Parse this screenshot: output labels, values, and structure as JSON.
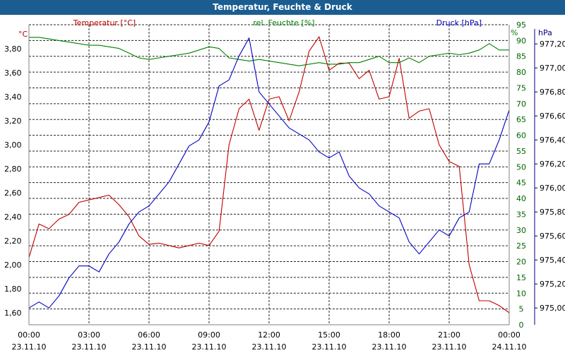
{
  "window": {
    "title": "Temperatur, Feuchte & Druck"
  },
  "chart_data": {
    "type": "line",
    "title": "Temperatur, Feuchte & Druck",
    "x": [
      "00:00",
      "00:30",
      "01:00",
      "01:30",
      "02:00",
      "02:30",
      "03:00",
      "03:30",
      "04:00",
      "04:30",
      "05:00",
      "05:30",
      "06:00",
      "06:30",
      "07:00",
      "07:30",
      "08:00",
      "08:30",
      "09:00",
      "09:30",
      "10:00",
      "10:30",
      "11:00",
      "11:30",
      "12:00",
      "12:30",
      "13:00",
      "13:30",
      "14:00",
      "14:30",
      "15:00",
      "15:30",
      "16:00",
      "16:30",
      "17:00",
      "17:30",
      "18:00",
      "18:30",
      "19:00",
      "19:30",
      "20:00",
      "20:30",
      "21:00",
      "21:30",
      "22:00",
      "22:30",
      "23:00",
      "23:30",
      "24:00"
    ],
    "x_tick_labels": [
      {
        "time": "00:00",
        "date": "23.11.10"
      },
      {
        "time": "03:00",
        "date": "23.11.10"
      },
      {
        "time": "06:00",
        "date": "23.11.10"
      },
      {
        "time": "09:00",
        "date": "23.11.10"
      },
      {
        "time": "12:00",
        "date": "23.11.10"
      },
      {
        "time": "15:00",
        "date": "23.11.10"
      },
      {
        "time": "18:00",
        "date": "23.11.10"
      },
      {
        "time": "21:00",
        "date": "23.11.10"
      },
      {
        "time": "00:00",
        "date": "24.11.10"
      }
    ],
    "axes": [
      {
        "side": "left",
        "unit": "°C",
        "ylim": [
          1.5,
          4.0
        ],
        "ticks": [
          "1,60",
          "1,80",
          "2,00",
          "2,20",
          "2,40",
          "2,60",
          "2,80",
          "3,00",
          "3,20",
          "3,40",
          "3,60",
          "3,80"
        ],
        "color": "#b00000"
      },
      {
        "side": "right",
        "unit": "%",
        "ylim": [
          0,
          95
        ],
        "ticks": [
          "0",
          "5",
          "10",
          "15",
          "20",
          "25",
          "30",
          "35",
          "40",
          "45",
          "50",
          "55",
          "60",
          "65",
          "70",
          "75",
          "80",
          "85",
          "90",
          "95"
        ],
        "color": "#008000"
      },
      {
        "side": "right",
        "unit": "hPa",
        "ylim": [
          974.86,
          977.36
        ],
        "ticks": [
          "975,00",
          "975,20",
          "975,40",
          "975,60",
          "975,80",
          "976,00",
          "976,20",
          "976,40",
          "976,60",
          "976,80",
          "977,00",
          "977,20"
        ],
        "color": "#000080"
      }
    ],
    "series": [
      {
        "name": "Temperatur [°C]",
        "axis": 0,
        "color": "#c00000",
        "values": [
          2.06,
          2.34,
          2.3,
          2.38,
          2.42,
          2.52,
          2.54,
          2.56,
          2.58,
          2.5,
          2.4,
          2.24,
          2.17,
          2.18,
          2.16,
          2.14,
          2.16,
          2.18,
          2.16,
          2.28,
          3.0,
          3.3,
          3.38,
          3.12,
          3.38,
          3.4,
          3.2,
          3.44,
          3.78,
          3.9,
          3.62,
          3.68,
          3.68,
          3.55,
          3.62,
          3.38,
          3.4,
          3.72,
          3.22,
          3.28,
          3.3,
          3.0,
          2.86,
          2.82,
          2.0,
          1.7,
          1.7,
          1.66,
          1.6
        ]
      },
      {
        "name": "rel. Feuchte [%]",
        "axis": 1,
        "color": "#008000",
        "values": [
          91,
          91,
          90.5,
          90,
          89.5,
          89,
          88.5,
          88.5,
          88,
          87.5,
          86,
          84.5,
          84,
          84.5,
          85,
          85.5,
          86,
          87,
          88,
          87.5,
          84.5,
          84,
          83.5,
          84,
          83.5,
          83,
          82.5,
          82,
          82.5,
          83,
          82.5,
          82.5,
          83,
          83,
          84,
          85,
          83,
          83,
          84.5,
          83,
          85,
          85.5,
          86,
          85.5,
          86,
          87,
          89,
          87,
          87
        ]
      },
      {
        "name": "Druck [hPa]",
        "axis": 2,
        "color": "#0000c0",
        "values": [
          975.0,
          975.05,
          975.0,
          975.1,
          975.25,
          975.35,
          975.35,
          975.3,
          975.45,
          975.55,
          975.7,
          975.8,
          975.85,
          975.95,
          976.05,
          976.2,
          976.35,
          976.4,
          976.55,
          976.85,
          976.9,
          977.1,
          977.25,
          976.8,
          976.7,
          976.6,
          976.5,
          976.45,
          976.4,
          976.3,
          976.25,
          976.3,
          976.1,
          976.0,
          975.95,
          975.85,
          975.8,
          975.75,
          975.55,
          975.45,
          975.55,
          975.65,
          975.6,
          975.75,
          975.8,
          976.2,
          976.2,
          976.4,
          976.65
        ]
      }
    ],
    "grid": true,
    "legend": "top"
  }
}
